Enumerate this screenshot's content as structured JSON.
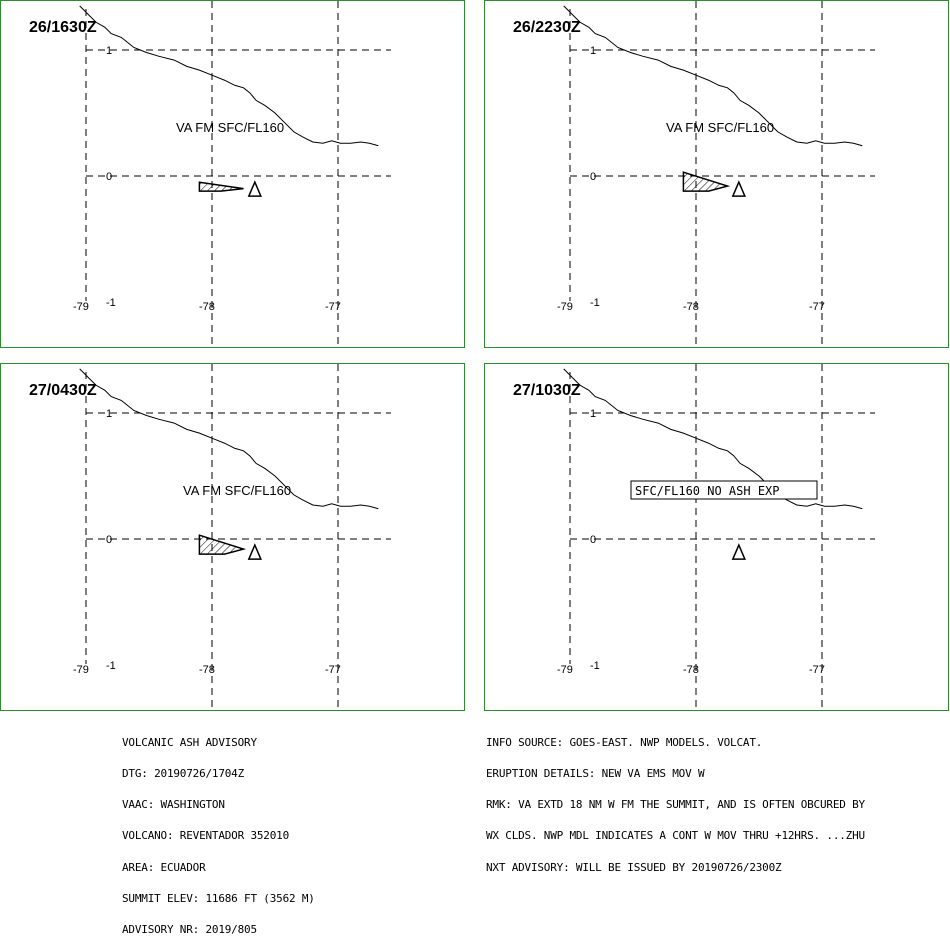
{
  "panels": [
    {
      "time": "26/1630Z",
      "label": "VA FM SFC/FL160",
      "boxed": false,
      "polygon": [
        [
          -78.1,
          -0.05
        ],
        [
          -77.75,
          -0.1
        ],
        [
          -77.93,
          -0.12
        ],
        [
          -78.1,
          -0.12
        ]
      ]
    },
    {
      "time": "26/2230Z",
      "label": "VA FM SFC/FL160",
      "boxed": false,
      "polygon": [
        [
          -78.1,
          0.03
        ],
        [
          -77.75,
          -0.08
        ],
        [
          -77.9,
          -0.12
        ],
        [
          -78.1,
          -0.12
        ]
      ]
    },
    {
      "time": "27/0430Z",
      "label": "VA FM SFC/FL160",
      "boxed": false,
      "polygon": [
        [
          -78.1,
          0.03
        ],
        [
          -77.75,
          -0.08
        ],
        [
          -77.9,
          -0.12
        ],
        [
          -78.1,
          -0.12
        ]
      ]
    },
    {
      "time": "27/1030Z",
      "label": "SFC/FL160 NO ASH EXP",
      "boxed": true,
      "polygon": []
    }
  ],
  "axis": {
    "lon_ticks": [
      "-79",
      "-78",
      "-77"
    ],
    "lat_ticks": [
      "1",
      "0",
      "-1"
    ]
  },
  "volcano": {
    "lon": -77.66,
    "lat": -0.08
  },
  "coastline": [
    [
      -79.05,
      1.35
    ],
    [
      -78.98,
      1.28
    ],
    [
      -78.92,
      1.22
    ],
    [
      -78.85,
      1.18
    ],
    [
      -78.8,
      1.13
    ],
    [
      -78.72,
      1.1
    ],
    [
      -78.62,
      1.02
    ],
    [
      -78.52,
      0.98
    ],
    [
      -78.42,
      0.95
    ],
    [
      -78.3,
      0.92
    ],
    [
      -78.2,
      0.87
    ],
    [
      -78.1,
      0.84
    ],
    [
      -78.0,
      0.8
    ],
    [
      -77.9,
      0.76
    ],
    [
      -77.82,
      0.72
    ],
    [
      -77.75,
      0.7
    ],
    [
      -77.7,
      0.66
    ],
    [
      -77.65,
      0.6
    ],
    [
      -77.58,
      0.56
    ],
    [
      -77.5,
      0.5
    ],
    [
      -77.42,
      0.42
    ],
    [
      -77.35,
      0.35
    ],
    [
      -77.28,
      0.31
    ],
    [
      -77.2,
      0.27
    ],
    [
      -77.12,
      0.26
    ],
    [
      -77.05,
      0.28
    ],
    [
      -76.98,
      0.26
    ],
    [
      -76.9,
      0.26
    ],
    [
      -76.82,
      0.27
    ],
    [
      -76.75,
      0.26
    ],
    [
      -76.68,
      0.24
    ]
  ],
  "footer_left": [
    "VOLCANIC ASH ADVISORY",
    "DTG: 20190726/1704Z",
    "VAAC: WASHINGTON",
    "VOLCANO: REVENTADOR 352010",
    "AREA: ECUADOR",
    "SUMMIT ELEV: 11686 FT (3562 M)",
    "ADVISORY NR: 2019/805"
  ],
  "footer_right": [
    "INFO SOURCE: GOES-EAST. NWP MODELS. VOLCAT.",
    "ERUPTION DETAILS: NEW VA EMS MOV W",
    "RMK: VA EXTD 18 NM W FM THE SUMMIT, AND IS OFTEN OBCURED BY",
    "WX CLDS. NWP MDL INDICATES A CONT W MOV THRU +12HRS. ...ZHU",
    "NXT ADVISORY: WILL BE ISSUED BY 20190726/2300Z"
  ]
}
